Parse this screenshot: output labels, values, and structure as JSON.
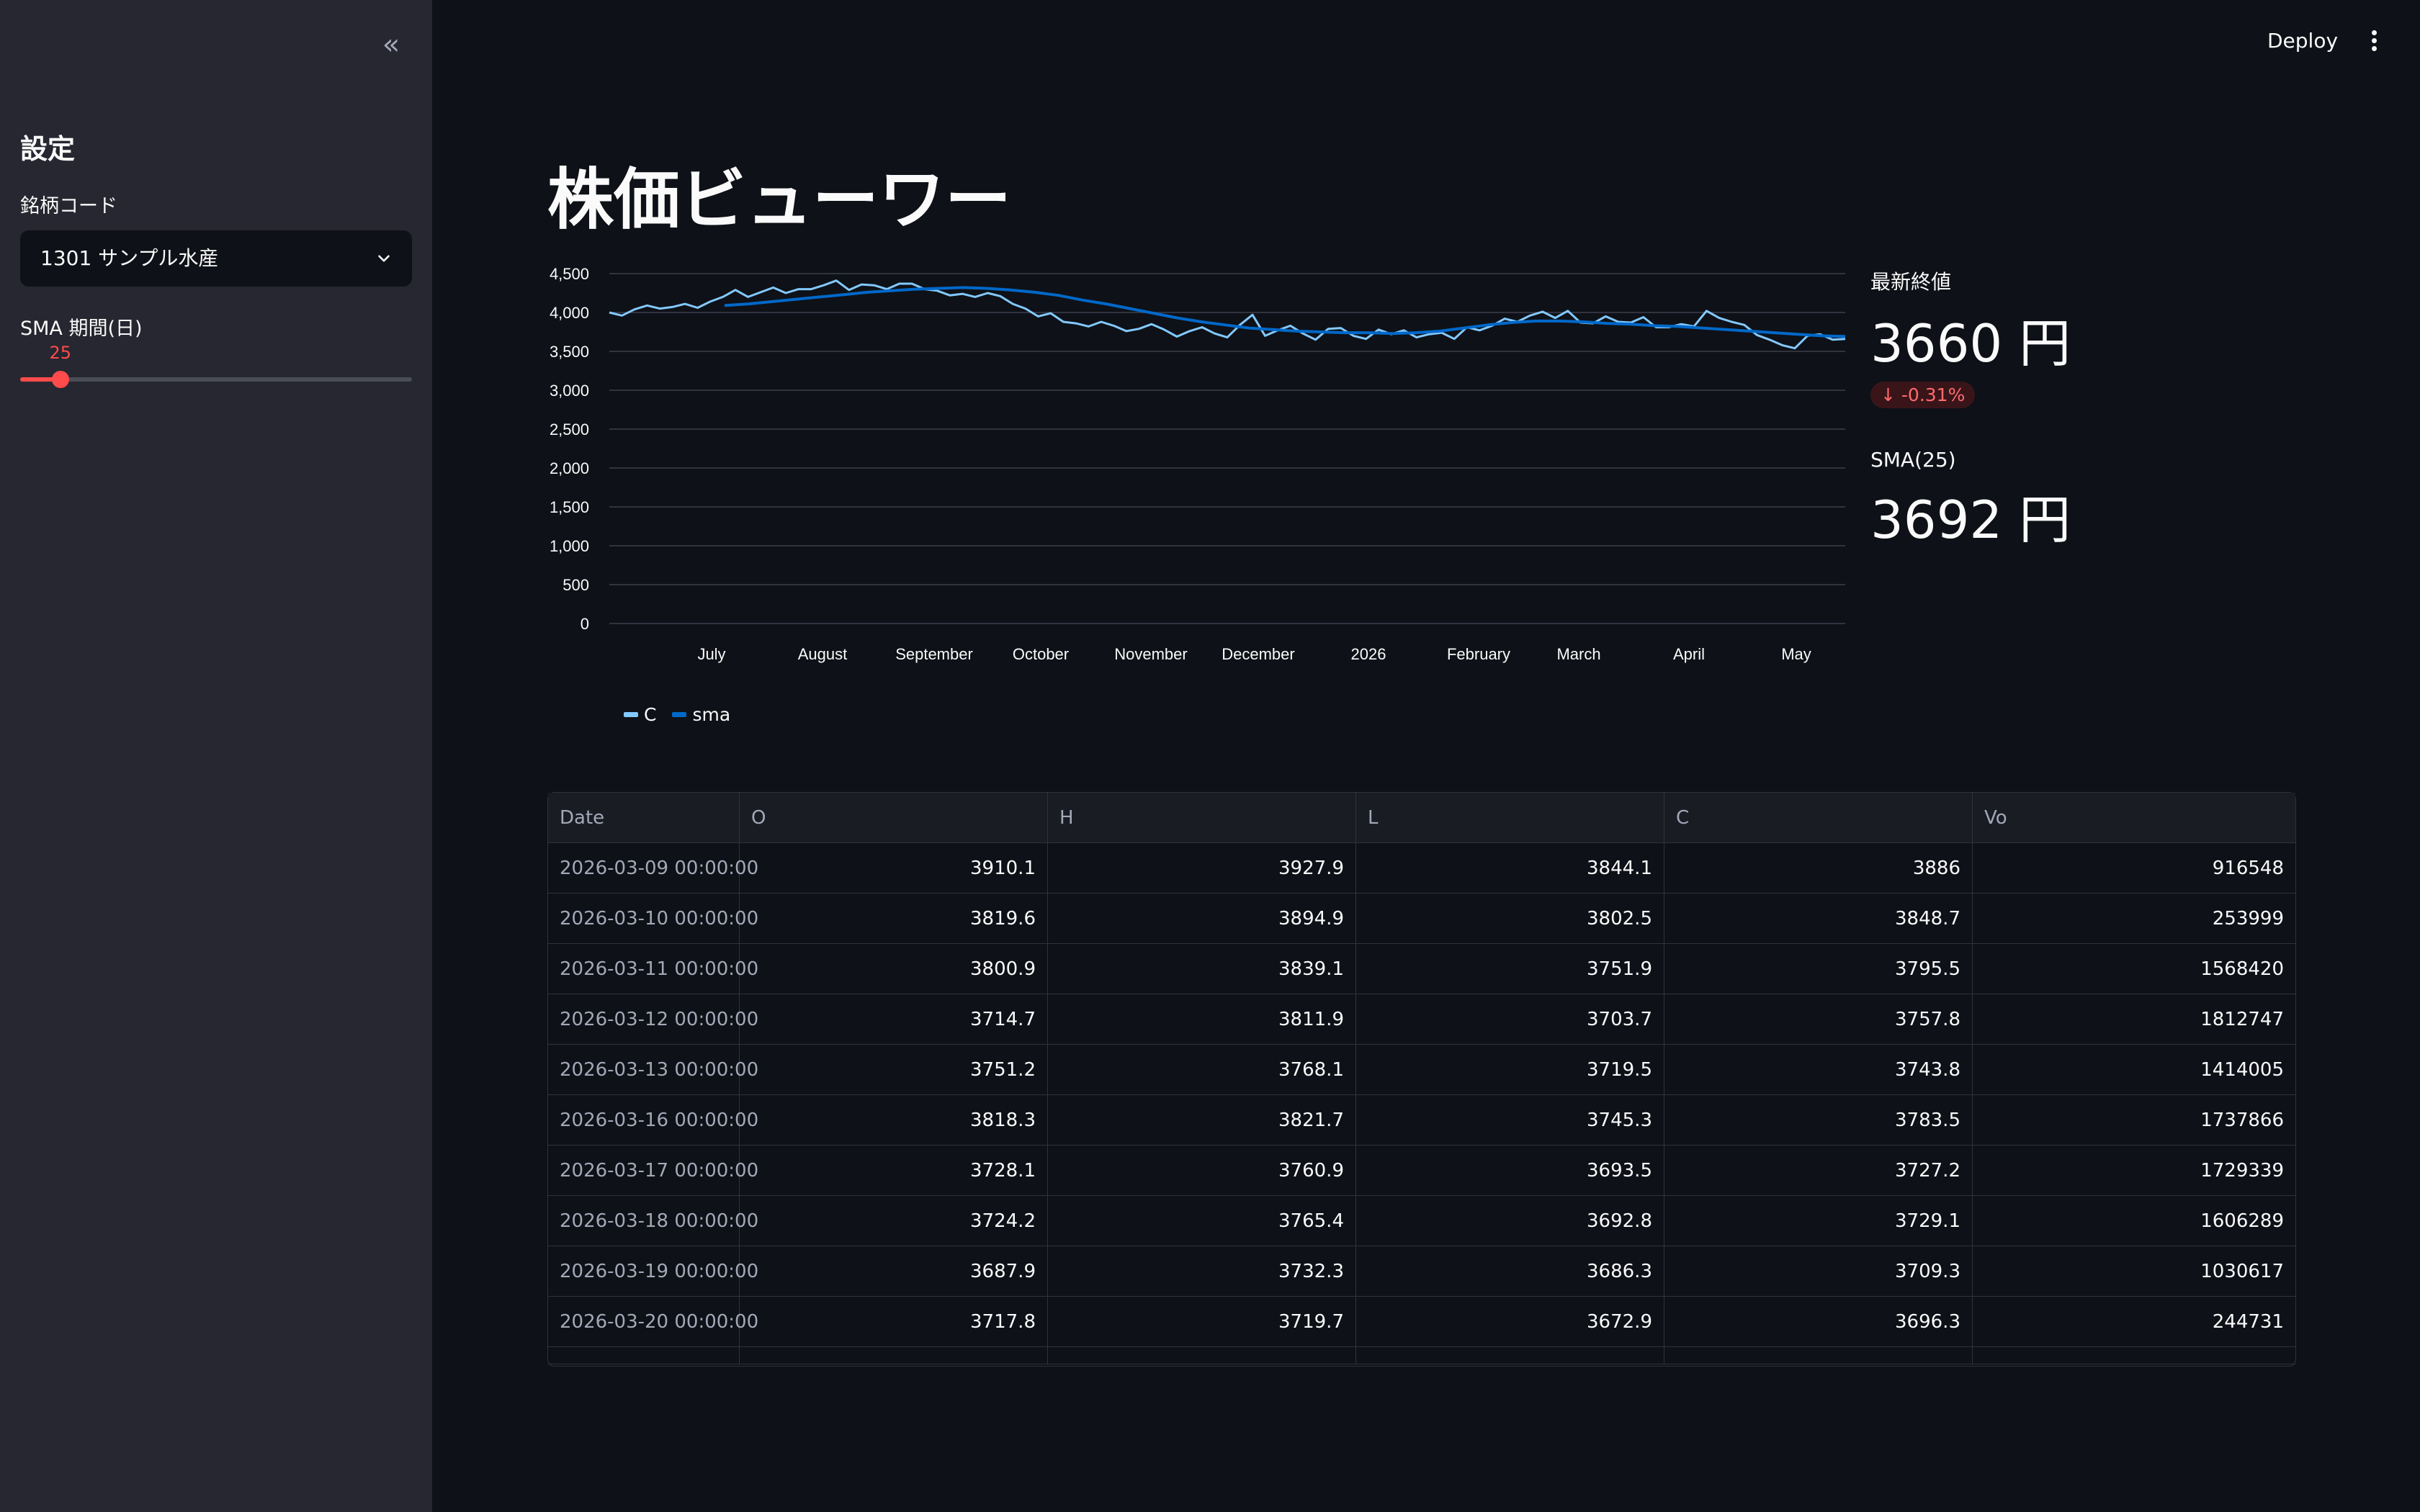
{
  "sidebar": {
    "heading": "設定",
    "ticker_label": "銘柄コード",
    "ticker_value": "1301 サンプル水産",
    "sma_label": "SMA 期間(日)",
    "sma_value": 25,
    "sma_min": 5,
    "sma_max": 200
  },
  "topbar": {
    "deploy_label": "Deploy"
  },
  "main": {
    "title": "株価ビューワー"
  },
  "metrics": {
    "latest_label": "最新終値",
    "latest_value": "3660 円",
    "latest_delta": "-0.31%",
    "sma_label": "SMA(25)",
    "sma_value": "3692 円"
  },
  "chart_data": {
    "type": "line",
    "ylim": [
      0,
      4500
    ],
    "y_ticks": [
      "0",
      "500",
      "1,000",
      "1,500",
      "2,000",
      "2,500",
      "3,000",
      "3,500",
      "4,000",
      "4,500"
    ],
    "x_tick_labels": [
      "July",
      "August",
      "September",
      "October",
      "November",
      "December",
      "2026",
      "February",
      "March",
      "April",
      "May"
    ],
    "grid": true,
    "legend_position": "bottom-left",
    "series": [
      {
        "name": "C",
        "color": "#83c9ff",
        "values": [
          4000,
          3960,
          4040,
          4090,
          4050,
          4070,
          4110,
          4060,
          4140,
          4200,
          4290,
          4200,
          4260,
          4320,
          4250,
          4300,
          4300,
          4350,
          4410,
          4290,
          4360,
          4350,
          4300,
          4370,
          4370,
          4300,
          4280,
          4220,
          4240,
          4200,
          4250,
          4210,
          4110,
          4050,
          3950,
          3990,
          3880,
          3860,
          3820,
          3880,
          3830,
          3760,
          3790,
          3850,
          3780,
          3690,
          3760,
          3810,
          3730,
          3680,
          3840,
          3970,
          3700,
          3770,
          3830,
          3730,
          3650,
          3790,
          3800,
          3700,
          3660,
          3780,
          3720,
          3770,
          3680,
          3720,
          3740,
          3660,
          3810,
          3770,
          3830,
          3920,
          3880,
          3960,
          4010,
          3930,
          4020,
          3870,
          3860,
          3950,
          3880,
          3870,
          3940,
          3810,
          3810,
          3850,
          3820,
          4020,
          3930,
          3880,
          3840,
          3710,
          3650,
          3580,
          3540,
          3700,
          3720,
          3650,
          3660
        ]
      },
      {
        "name": "sma",
        "color": "#0068c9",
        "values": [
          4090,
          4110,
          4140,
          4170,
          4200,
          4230,
          4260,
          4280,
          4300,
          4310,
          4320,
          4310,
          4290,
          4260,
          4220,
          4160,
          4110,
          4050,
          3990,
          3930,
          3880,
          3840,
          3800,
          3780,
          3760,
          3750,
          3740,
          3740,
          3730,
          3740,
          3760,
          3800,
          3840,
          3870,
          3890,
          3890,
          3880,
          3860,
          3850,
          3830,
          3820,
          3800,
          3780,
          3760,
          3740,
          3720,
          3700,
          3692
        ]
      }
    ]
  },
  "table": {
    "columns": [
      "Date",
      "O",
      "H",
      "L",
      "C",
      "Vo"
    ],
    "rows": [
      [
        "2026-03-09 00:00:00",
        "3910.1",
        "3927.9",
        "3844.1",
        "3886",
        "916548"
      ],
      [
        "2026-03-10 00:00:00",
        "3819.6",
        "3894.9",
        "3802.5",
        "3848.7",
        "253999"
      ],
      [
        "2026-03-11 00:00:00",
        "3800.9",
        "3839.1",
        "3751.9",
        "3795.5",
        "1568420"
      ],
      [
        "2026-03-12 00:00:00",
        "3714.7",
        "3811.9",
        "3703.7",
        "3757.8",
        "1812747"
      ],
      [
        "2026-03-13 00:00:00",
        "3751.2",
        "3768.1",
        "3719.5",
        "3743.8",
        "1414005"
      ],
      [
        "2026-03-16 00:00:00",
        "3818.3",
        "3821.7",
        "3745.3",
        "3783.5",
        "1737866"
      ],
      [
        "2026-03-17 00:00:00",
        "3728.1",
        "3760.9",
        "3693.5",
        "3727.2",
        "1729339"
      ],
      [
        "2026-03-18 00:00:00",
        "3724.2",
        "3765.4",
        "3692.8",
        "3729.1",
        "1606289"
      ],
      [
        "2026-03-19 00:00:00",
        "3687.9",
        "3732.3",
        "3686.3",
        "3709.3",
        "1030617"
      ],
      [
        "2026-03-20 00:00:00",
        "3717.8",
        "3719.7",
        "3672.9",
        "3696.3",
        "244731"
      ]
    ]
  }
}
